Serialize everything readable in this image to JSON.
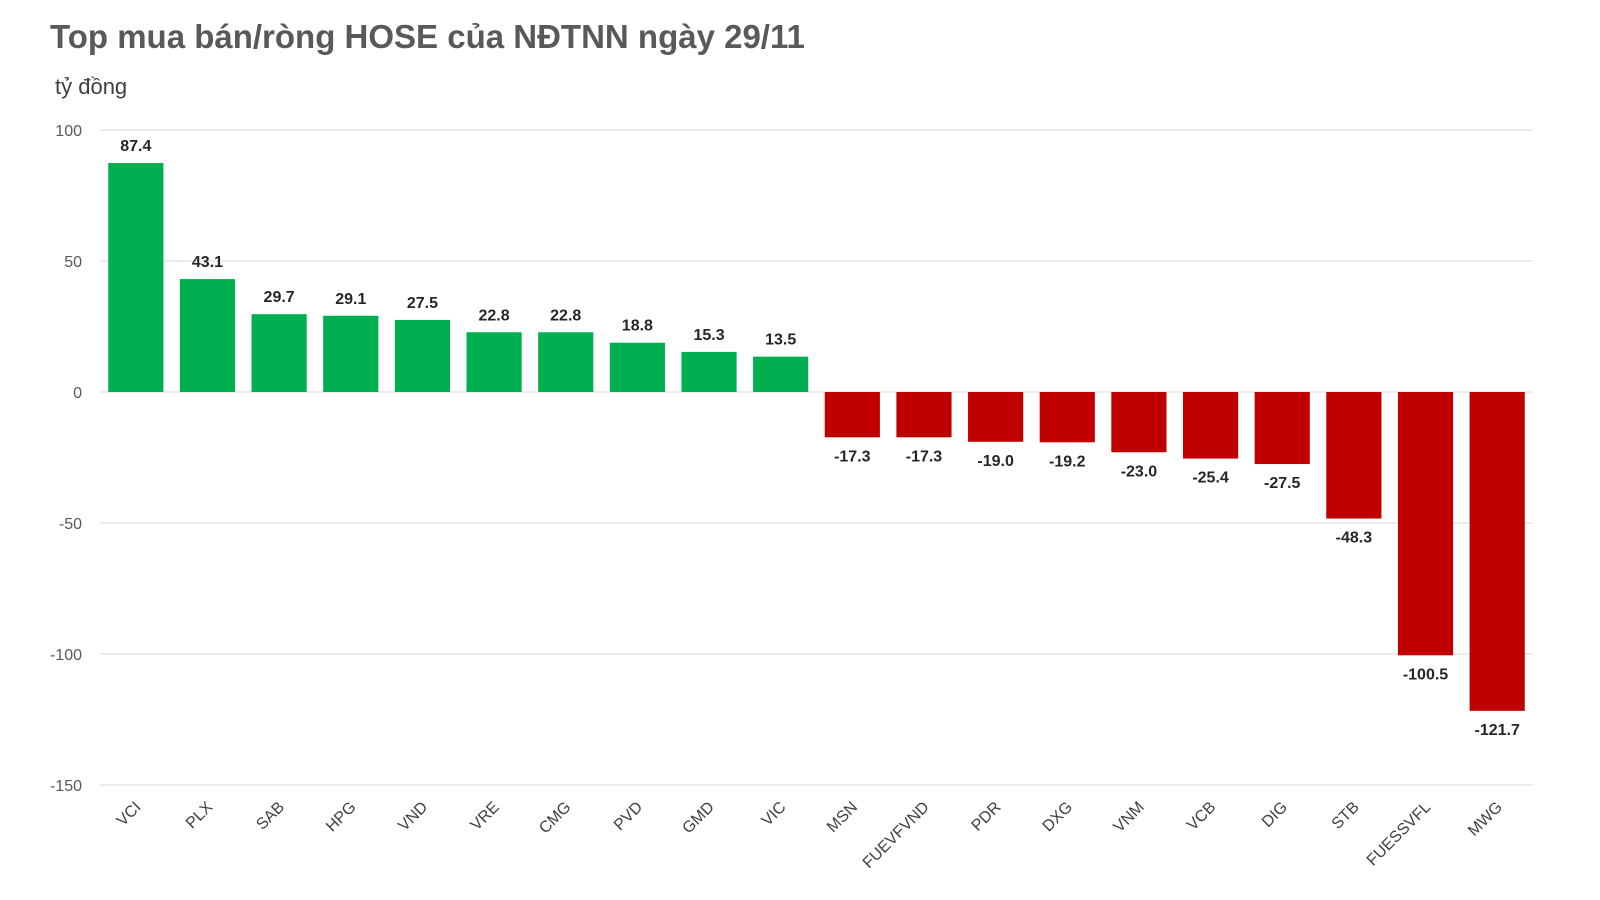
{
  "chart_data": {
    "type": "bar",
    "title": "Top mua bán/ròng HOSE của NĐTNN ngày 29/11",
    "ylabel": "tỷ đồng",
    "xlabel": "",
    "ylim": [
      -150,
      100
    ],
    "yticks": [
      100,
      50,
      0,
      -50,
      -100,
      -150
    ],
    "grid": true,
    "categories": [
      "VCI",
      "PLX",
      "SAB",
      "HPG",
      "VND",
      "VRE",
      "CMG",
      "PVD",
      "GMD",
      "VIC",
      "MSN",
      "FUEVFVND",
      "PDR",
      "DXG",
      "VNM",
      "VCB",
      "DIG",
      "STB",
      "FUESSVFL",
      "MWG"
    ],
    "values": [
      87.4,
      43.1,
      29.7,
      29.1,
      27.5,
      22.8,
      22.8,
      18.8,
      15.3,
      13.5,
      -17.3,
      -17.3,
      -19.0,
      -19.2,
      -23.0,
      -25.4,
      -27.5,
      -48.3,
      -100.5,
      -121.7
    ],
    "colors": {
      "positive": "#00b050",
      "negative": "#c00000"
    }
  }
}
